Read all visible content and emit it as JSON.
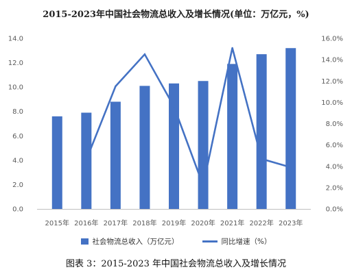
{
  "figure_caption": "图表 3：2015-2023 年中国社会物流总收入及增长情况",
  "chart_data": {
    "type": "bar",
    "title": "2015-2023年中国社会物流总收入及增长情况(单位：万亿元，%)",
    "categories": [
      "2015年",
      "2016年",
      "2017年",
      "2018年",
      "2019年",
      "2020年",
      "2021年",
      "2022年",
      "2023年"
    ],
    "y_ticks": [
      "0.0",
      "2.0",
      "4.0",
      "6.0",
      "8.0",
      "10.0",
      "12.0",
      "14.0"
    ],
    "y2_ticks": [
      "0.0%",
      "2.0%",
      "4.0%",
      "6.0%",
      "8.0%",
      "10.0%",
      "12.0%",
      "14.0%",
      "16.0%"
    ],
    "ylim": [
      0,
      14
    ],
    "y2lim": [
      0,
      16
    ],
    "series": [
      {
        "name": "社会物流总收入（万亿元）",
        "type": "bar",
        "axis": "left",
        "color": "#4472C4",
        "values": [
          7.6,
          7.9,
          8.8,
          10.1,
          10.3,
          10.5,
          11.9,
          12.7,
          13.2
        ]
      },
      {
        "name": "同比增速（%）",
        "type": "line",
        "axis": "right",
        "color": "#4472C4",
        "values": [
          null,
          4.6,
          11.5,
          14.5,
          9.6,
          2.2,
          15.1,
          4.7,
          3.9
        ]
      }
    ],
    "legend_position": "bottom",
    "grid": false
  }
}
